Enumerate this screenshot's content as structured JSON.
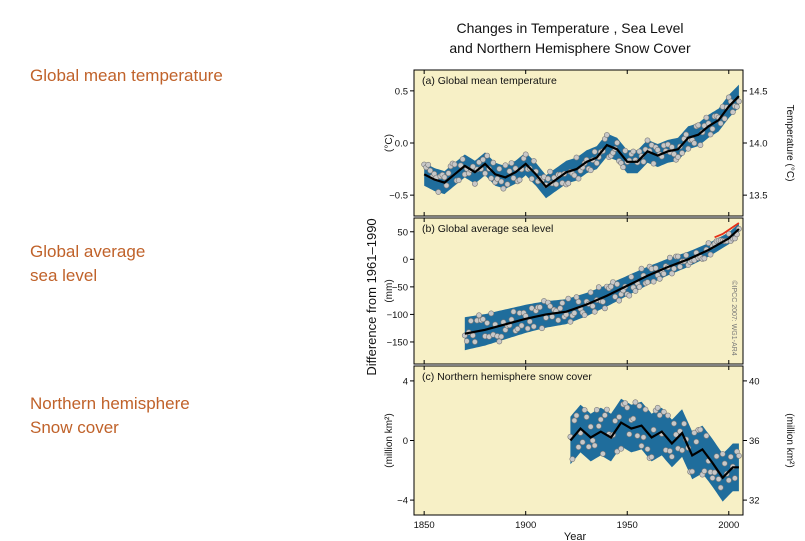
{
  "labels": {
    "temp": "Global mean temperature",
    "sea_line1": "Global average",
    "sea_line2": "sea level",
    "snow_line1": "Northern hemisphere",
    "snow_line2": "Snow cover"
  },
  "figure": {
    "title_line1": "Changes in Temperature , Sea Level",
    "title_line2": "and Northern Hemisphere Snow Cover",
    "shared_ylabel": "Difference from 1961–1990",
    "xlabel": "Year",
    "watermark": "©IPCC 2007: WG1-AR4"
  },
  "colors": {
    "panel_bg": "#f7f0c6",
    "band": "#1f6d9c",
    "smooth_line": "#000000",
    "points": "#c8c8c8",
    "sat_line": "#e53018",
    "title_text": "#c0622a"
  },
  "chart_data": [
    {
      "type": "line",
      "title": "(a) Global mean temperature",
      "xlabel": "Year",
      "ylabel": "(°C)",
      "y2label": "Temperature (°C)",
      "xlim": [
        1845,
        2007
      ],
      "ylim": [
        -0.7,
        0.7
      ],
      "x_ticks": [
        1850,
        1900,
        1950,
        2000
      ],
      "y_ticks": [
        -0.5,
        0.0,
        0.5
      ],
      "y_tick_labels": [
        "−0.5",
        "0.0",
        "0.5"
      ],
      "y2_ticks": [
        13.5,
        14.0,
        14.5
      ],
      "y2_tick_labels": [
        "13.5",
        "14.0",
        "14.5"
      ],
      "y2_offset": 14.0,
      "smooth": {
        "x": [
          1850,
          1855,
          1860,
          1865,
          1870,
          1875,
          1880,
          1885,
          1890,
          1895,
          1900,
          1905,
          1910,
          1915,
          1920,
          1925,
          1930,
          1935,
          1940,
          1945,
          1950,
          1955,
          1960,
          1965,
          1970,
          1975,
          1980,
          1985,
          1990,
          1995,
          2000,
          2005
        ],
        "y": [
          -0.3,
          -0.35,
          -0.38,
          -0.3,
          -0.22,
          -0.28,
          -0.2,
          -0.3,
          -0.33,
          -0.28,
          -0.2,
          -0.3,
          -0.42,
          -0.35,
          -0.28,
          -0.25,
          -0.18,
          -0.14,
          -0.02,
          -0.06,
          -0.18,
          -0.18,
          -0.08,
          -0.12,
          -0.08,
          -0.06,
          0.05,
          0.08,
          0.16,
          0.22,
          0.35,
          0.45
        ]
      },
      "band_halfwidth": 0.11,
      "series": [
        {
          "name": "Annual values",
          "n_points": 156,
          "x_start": 1850,
          "x_end": 2005
        }
      ]
    },
    {
      "type": "line",
      "title": "(b) Global average sea level",
      "xlabel": "Year",
      "ylabel": "(mm)",
      "xlim": [
        1845,
        2007
      ],
      "ylim": [
        -190,
        75
      ],
      "x_ticks": [
        1850,
        1900,
        1950,
        2000
      ],
      "y_ticks": [
        -150,
        -100,
        -50,
        0,
        50
      ],
      "y_tick_labels": [
        "−150",
        "−100",
        "−50",
        "0",
        "50"
      ],
      "smooth": {
        "x": [
          1870,
          1880,
          1890,
          1900,
          1910,
          1920,
          1930,
          1940,
          1950,
          1960,
          1970,
          1980,
          1990,
          2000,
          2005
        ],
        "y": [
          -135,
          -128,
          -118,
          -108,
          -100,
          -95,
          -82,
          -66,
          -48,
          -30,
          -14,
          0,
          17,
          38,
          55
        ]
      },
      "band_halfwidth_start": 30,
      "band_halfwidth_end": 10,
      "satellite": {
        "x": [
          1993,
          1997,
          2001,
          2005
        ],
        "y": [
          40,
          46,
          56,
          66
        ]
      },
      "series": [
        {
          "name": "Tide gauge",
          "x_start": 1870,
          "x_end": 2003
        },
        {
          "name": "Satellite altimetry",
          "x_start": 1993,
          "x_end": 2005
        }
      ]
    },
    {
      "type": "line",
      "title": "(c) Northern hemisphere snow cover",
      "xlabel": "Year",
      "ylabel": "(million km²)",
      "y2label": "(million km²)",
      "xlim": [
        1845,
        2007
      ],
      "ylim": [
        -5,
        5
      ],
      "x_ticks": [
        1850,
        1900,
        1950,
        2000
      ],
      "y_ticks": [
        -4,
        0,
        4
      ],
      "y_tick_labels": [
        "−4",
        "0",
        "4"
      ],
      "y2_ticks": [
        32,
        36,
        40
      ],
      "y2_tick_labels": [
        "32",
        "36",
        "40"
      ],
      "y2_offset": 36,
      "smooth": {
        "x": [
          1922,
          1927,
          1932,
          1937,
          1942,
          1947,
          1952,
          1957,
          1962,
          1967,
          1972,
          1977,
          1982,
          1987,
          1992,
          1997,
          2002,
          2005
        ],
        "y": [
          0.0,
          0.8,
          0.2,
          0.6,
          0.2,
          1.2,
          0.8,
          1.0,
          0.2,
          0.6,
          -0.2,
          0.5,
          -1.0,
          -0.6,
          -1.5,
          -2.5,
          -1.8,
          -1.8
        ]
      },
      "band_halfwidth": 1.6,
      "series": [
        {
          "name": "Annual values",
          "x_start": 1922,
          "x_end": 2005
        }
      ]
    }
  ]
}
